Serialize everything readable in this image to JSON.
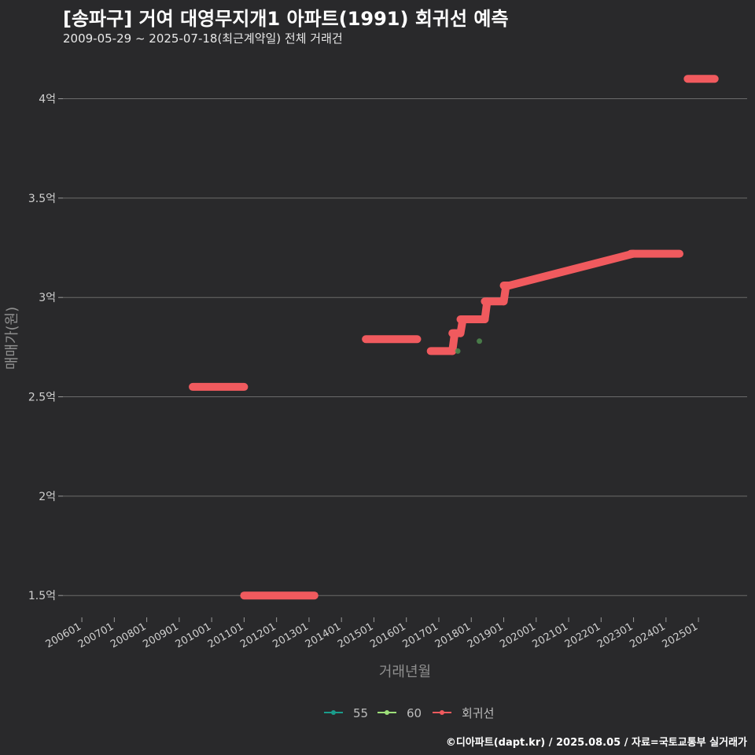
{
  "title": "[송파구] 거여 대영무지개1 아파트(1991) 회귀선 예측",
  "subtitle": "2009-05-29 ~ 2025-07-18(최근계약일) 전체 거래건",
  "caption": "©디아파트(dapt.kr) / 2025.08.05 / 자료=국토교통부 실거래가",
  "chart_data": {
    "type": "line",
    "xlabel": "거래년월",
    "ylabel": "매매가(원)",
    "x_ticks": [
      "200601",
      "200701",
      "200801",
      "200901",
      "201001",
      "201101",
      "201201",
      "201301",
      "201401",
      "201501",
      "201601",
      "201701",
      "201801",
      "201901",
      "202001",
      "202101",
      "202201",
      "202301",
      "202401",
      "202501"
    ],
    "xlim": [
      "2005-06",
      "2026-07"
    ],
    "y_ticks": [
      {
        "value": 1.5,
        "label": "1.5억"
      },
      {
        "value": 2.0,
        "label": "2억"
      },
      {
        "value": 2.5,
        "label": "2.5억"
      },
      {
        "value": 3.0,
        "label": "3억"
      },
      {
        "value": 3.5,
        "label": "3.5억"
      },
      {
        "value": 4.0,
        "label": "4억"
      }
    ],
    "ylim": [
      1.39,
      4.2
    ],
    "y_unit": "억",
    "legend": {
      "position": "bottom",
      "entries": [
        {
          "name": "55",
          "color": "#1a9c8c"
        },
        {
          "name": "60",
          "color": "#9ee07a"
        },
        {
          "name": "회귀선",
          "color": "#f05a5e"
        }
      ]
    },
    "regression_segments": [
      {
        "x": [
          "2009-06",
          "2011-01"
        ],
        "y": [
          2.55,
          2.55
        ]
      },
      {
        "x": [
          "2011-01",
          "2013-03"
        ],
        "y": [
          1.5,
          1.5
        ]
      },
      {
        "x": [
          "2014-10",
          "2016-05"
        ],
        "y": [
          2.79,
          2.79
        ]
      },
      {
        "x": [
          "2016-10",
          "2017-06"
        ],
        "y": [
          2.73,
          2.73
        ]
      },
      {
        "x": [
          "2017-06",
          "2017-09"
        ],
        "y": [
          2.82,
          2.82
        ]
      },
      {
        "x": [
          "2017-09",
          "2018-06"
        ],
        "y": [
          2.89,
          2.89
        ]
      },
      {
        "x": [
          "2018-06",
          "2019-01"
        ],
        "y": [
          2.98,
          2.98
        ]
      },
      {
        "x": [
          "2019-01",
          "2019-03"
        ],
        "y": [
          3.06,
          3.06
        ]
      },
      {
        "x": [
          "2022-12",
          "2024-06"
        ],
        "y": [
          3.22,
          3.22
        ]
      },
      {
        "x": [
          "2024-09",
          "2025-07"
        ],
        "y": [
          4.1,
          4.1
        ]
      }
    ],
    "points": [
      {
        "series": "55",
        "x": "2017-08",
        "y": 2.73
      },
      {
        "series": "60",
        "x": "2018-04",
        "y": 2.78
      }
    ]
  }
}
